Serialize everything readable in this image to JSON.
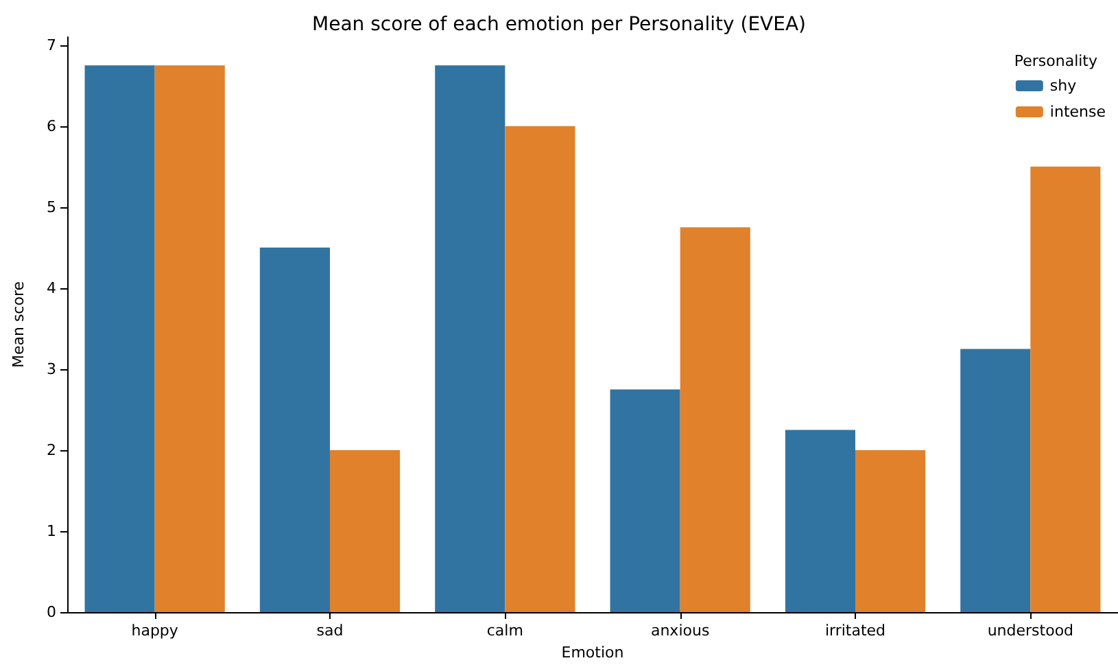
{
  "chart_data": {
    "type": "bar",
    "title": "Mean score of each emotion per Personality (EVEA)",
    "xlabel": "Emotion",
    "ylabel": "Mean score",
    "legend_title": "Personality",
    "categories": [
      "happy",
      "sad",
      "calm",
      "anxious",
      "irritated",
      "understood"
    ],
    "series": [
      {
        "name": "shy",
        "color": "#3274a1",
        "values": [
          6.75,
          4.5,
          6.75,
          2.75,
          2.25,
          3.25
        ]
      },
      {
        "name": "intense",
        "color": "#e1812c",
        "values": [
          6.75,
          2.0,
          6.0,
          4.75,
          2.0,
          5.5
        ]
      }
    ],
    "ylim": [
      0,
      7.1
    ],
    "yticks": [
      0,
      1,
      2,
      3,
      4,
      5,
      6,
      7
    ],
    "grid": false,
    "legend": "top right"
  }
}
